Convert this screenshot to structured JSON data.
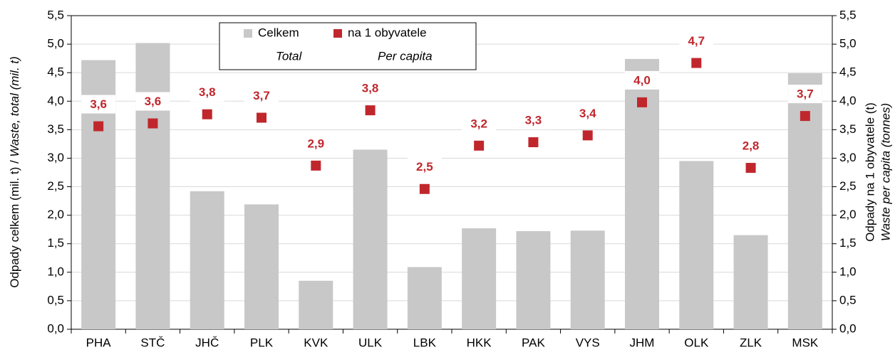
{
  "chart_data": {
    "type": "bar",
    "categories": [
      "PHA",
      "STČ",
      "JHČ",
      "PLK",
      "KVK",
      "ULK",
      "LBK",
      "HKK",
      "PAK",
      "VYS",
      "JHM",
      "OLK",
      "ZLK",
      "MSK"
    ],
    "series": [
      {
        "name": "Celkem",
        "name_en": "Total",
        "type": "bar",
        "color": "#c8c8c8",
        "values": [
          4.72,
          5.02,
          2.42,
          2.19,
          0.85,
          3.15,
          1.09,
          1.77,
          1.72,
          1.73,
          4.74,
          2.95,
          1.65,
          4.49
        ]
      },
      {
        "name": "na 1 obyvatele",
        "name_en": "Per capita",
        "type": "scatter",
        "axis": "y2",
        "color": "#c0272d",
        "values": [
          3.56,
          3.61,
          3.77,
          3.71,
          2.87,
          3.84,
          2.46,
          3.22,
          3.28,
          3.4,
          3.98,
          4.67,
          2.83,
          3.74
        ],
        "value_labels": [
          "3,6",
          "3,6",
          "3,8",
          "3,7",
          "2,9",
          "3,8",
          "2,5",
          "3,2",
          "3,3",
          "3,4",
          "4,0",
          "4,7",
          "2,8",
          "3,7"
        ]
      }
    ],
    "ylabel": "Odpady celkem (mil. t) / ",
    "ylabel_en": "Waste, total (mil. t)",
    "y2label": "Odpady na 1 obyvatele (t)",
    "y2label_en": "Waste per capita (tonnes)",
    "ylim": [
      0,
      5.5
    ],
    "yticks": [
      {
        "value": 0,
        "label": "0,0"
      },
      {
        "value": 0.5,
        "label": "0,5"
      },
      {
        "value": 1,
        "label": "1,0"
      },
      {
        "value": 1.5,
        "label": "1,5"
      },
      {
        "value": 2,
        "label": "2,0"
      },
      {
        "value": 2.5,
        "label": "2,5"
      },
      {
        "value": 3,
        "label": "3,0"
      },
      {
        "value": 3.5,
        "label": "3,5"
      },
      {
        "value": 4,
        "label": "4,0"
      },
      {
        "value": 4.5,
        "label": "4,5"
      },
      {
        "value": 5,
        "label": "5,0"
      },
      {
        "value": 5.5,
        "label": "5,5"
      }
    ],
    "y2lim": [
      0,
      5.5
    ],
    "y2ticks": [
      {
        "value": 0,
        "label": "0,0"
      },
      {
        "value": 0.5,
        "label": "0,5"
      },
      {
        "value": 1,
        "label": "1,0"
      },
      {
        "value": 1.5,
        "label": "1,5"
      },
      {
        "value": 2,
        "label": "2,0"
      },
      {
        "value": 2.5,
        "label": "2,5"
      },
      {
        "value": 3,
        "label": "3,0"
      },
      {
        "value": 3.5,
        "label": "3,5"
      },
      {
        "value": 4,
        "label": "4,0"
      },
      {
        "value": 4.5,
        "label": "4,5"
      },
      {
        "value": 5,
        "label": "5,0"
      },
      {
        "value": 5.5,
        "label": "5,5"
      }
    ],
    "grid": true,
    "legend": "top"
  }
}
